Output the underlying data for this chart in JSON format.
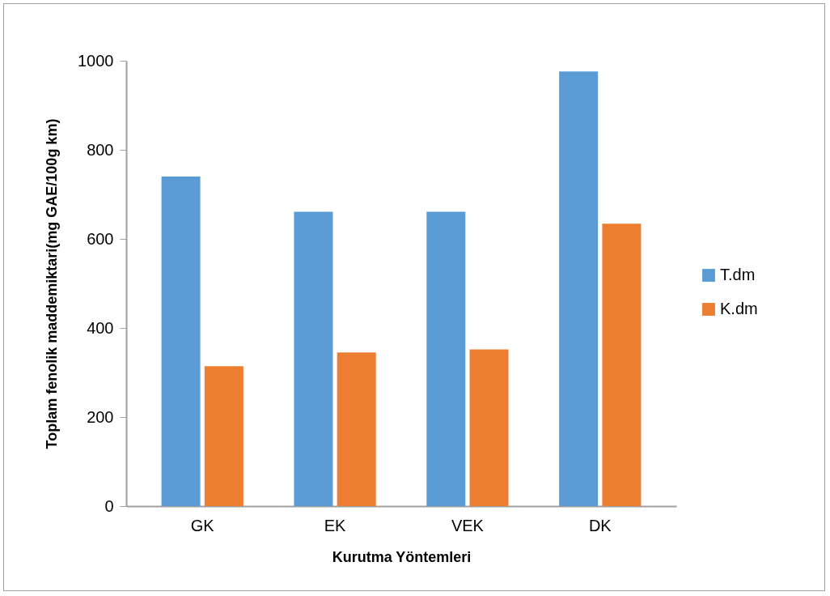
{
  "chart_data": {
    "type": "bar",
    "xlabel": "Kurutma Yöntemleri",
    "ylabel": "Toplam fenolik maddemiktari(mg GAE/100g km)",
    "categories": [
      "GK",
      "EK",
      "VEK",
      "DK"
    ],
    "series": [
      {
        "name": "T.dm",
        "color": "#5b9bd5",
        "values": [
          740,
          661,
          661,
          976
        ]
      },
      {
        "name": "K.dm",
        "color": "#ed7d31",
        "values": [
          314,
          345,
          352,
          634
        ]
      }
    ],
    "ylim": [
      0,
      1000
    ],
    "yticks": [
      0,
      200,
      400,
      600,
      800,
      1000
    ],
    "grid": false,
    "legend": "right"
  }
}
